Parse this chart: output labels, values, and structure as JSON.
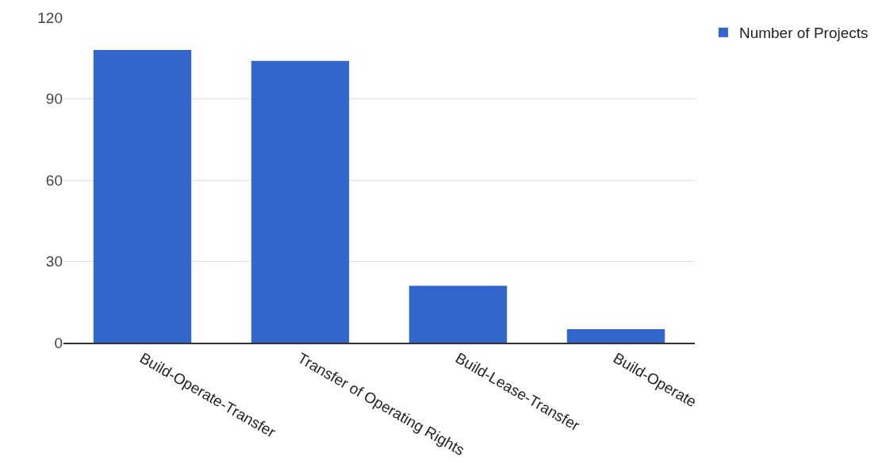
{
  "chart_data": {
    "type": "bar",
    "categories": [
      "Build-Operate-Transfer",
      "Transfer of Operating Rights",
      "Build-Lease-Transfer",
      "Build-Operate"
    ],
    "series": [
      {
        "name": "Number of Projects",
        "color": "#3366cc",
        "values": [
          108,
          104,
          21,
          5
        ]
      }
    ],
    "ylim": [
      0,
      120
    ],
    "yticks": [
      0,
      30,
      60,
      90,
      120
    ],
    "grid": "y",
    "legend": "top right"
  }
}
